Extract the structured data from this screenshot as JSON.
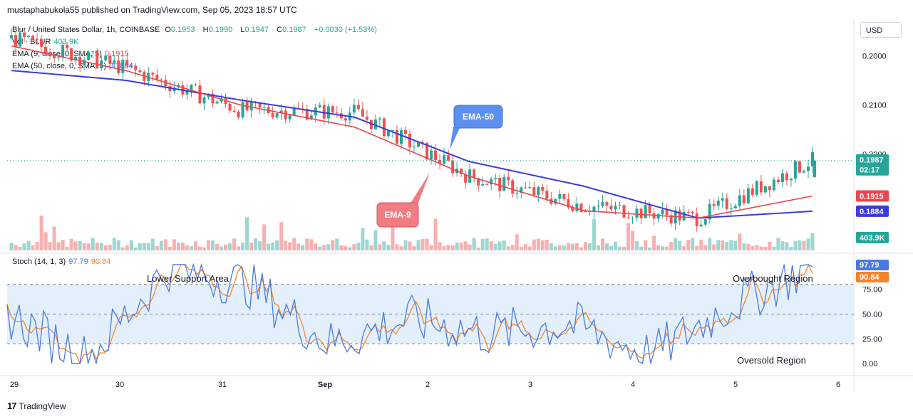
{
  "header": {
    "publisher_line": "mustaphabukola55 published on TradingView.com, Sep 05, 2023 18:57 UTC"
  },
  "legend": {
    "symbol": "Blur / United States Dollar, 1h, COINBASE",
    "open_label": "O",
    "open": "0.1953",
    "high_label": "H",
    "high": "0.1990",
    "low_label": "L",
    "low": "0.1947",
    "close_label": "C",
    "close": "0.1987",
    "change": "+0.0030 (+1.53%)",
    "vol_label": "Vol · BLUR",
    "vol_value": "403.9K",
    "ema9_label": "EMA (9, close, 0, SMA, 5)",
    "ema9_value": "0.1915",
    "ema50_label": "EMA (50, close, 0, SMA, 5)",
    "ema50_value": "0.1884",
    "stoch_label": "Stoch (14, 1, 3)",
    "stoch_k": "97.79",
    "stoch_d": "90.84"
  },
  "currency_button": "USD",
  "colors": {
    "up": "#26a69a",
    "down": "#ef5350",
    "ema9": "#e8474f",
    "ema50": "#3b3bdc",
    "stoch_k": "#4a7ae0",
    "stoch_d": "#f5832b",
    "band_fill": "#e3f0fc"
  },
  "price_axis_labels": [
    "0.2200",
    "0.2100",
    "0.2000"
  ],
  "price_tags": {
    "last": "0.1987",
    "countdown": "02:17",
    "ema9": "0.1915",
    "ema50": "0.1884",
    "volume": "403.9K"
  },
  "stoch_axis_labels": [
    "75.00",
    "50.00",
    "25.00",
    "0.00"
  ],
  "stoch_tags": {
    "k": "97.79",
    "d": "90.84"
  },
  "time_labels": [
    "29",
    "30",
    "31",
    "Sep",
    "2",
    "3",
    "4",
    "5",
    "6"
  ],
  "annotations": {
    "ema50_callout": "EMA-50",
    "ema9_callout": "EMA-9",
    "lower_support": "Lower Support Area",
    "overbought": "Overbought Region",
    "oversold": "Oversold Region"
  },
  "footer": {
    "brand": "TradingView"
  },
  "chart_data": [
    {
      "type": "line",
      "title": "Blur / United States Dollar, 1h, COINBASE",
      "x": [
        "Aug 29",
        "Aug 30",
        "Aug 31",
        "Sep 1",
        "Sep 2",
        "Sep 3",
        "Sep 4",
        "Sep 5"
      ],
      "series": [
        {
          "name": "Close",
          "values": [
            0.2235,
            0.2175,
            0.209,
            0.2085,
            0.1955,
            0.1895,
            0.187,
            0.1987
          ]
        },
        {
          "name": "EMA 9",
          "values": [
            0.222,
            0.217,
            0.21,
            0.2055,
            0.1955,
            0.1885,
            0.187,
            0.1915
          ]
        },
        {
          "name": "EMA 50",
          "values": [
            0.217,
            0.215,
            0.211,
            0.2075,
            0.1985,
            0.1935,
            0.187,
            0.1884
          ]
        }
      ],
      "ylim": [
        0.18,
        0.227
      ],
      "yticks": [
        0.2,
        0.21,
        0.22
      ],
      "last_price": 0.1987
    },
    {
      "type": "line",
      "title": "Stoch (14, 1, 3)",
      "x_index": [
        0,
        20,
        40,
        60,
        80,
        100,
        120,
        140,
        160,
        180,
        200
      ],
      "series": [
        {
          "name": "%K",
          "values": [
            50,
            5,
            97,
            80,
            20,
            45,
            30,
            40,
            8,
            60,
            97.79
          ]
        },
        {
          "name": "%D",
          "values": [
            45,
            8,
            88,
            78,
            22,
            40,
            32,
            38,
            12,
            55,
            90.84
          ]
        }
      ],
      "ylim": [
        -10,
        110
      ],
      "bands": [
        20,
        50,
        80
      ]
    }
  ]
}
